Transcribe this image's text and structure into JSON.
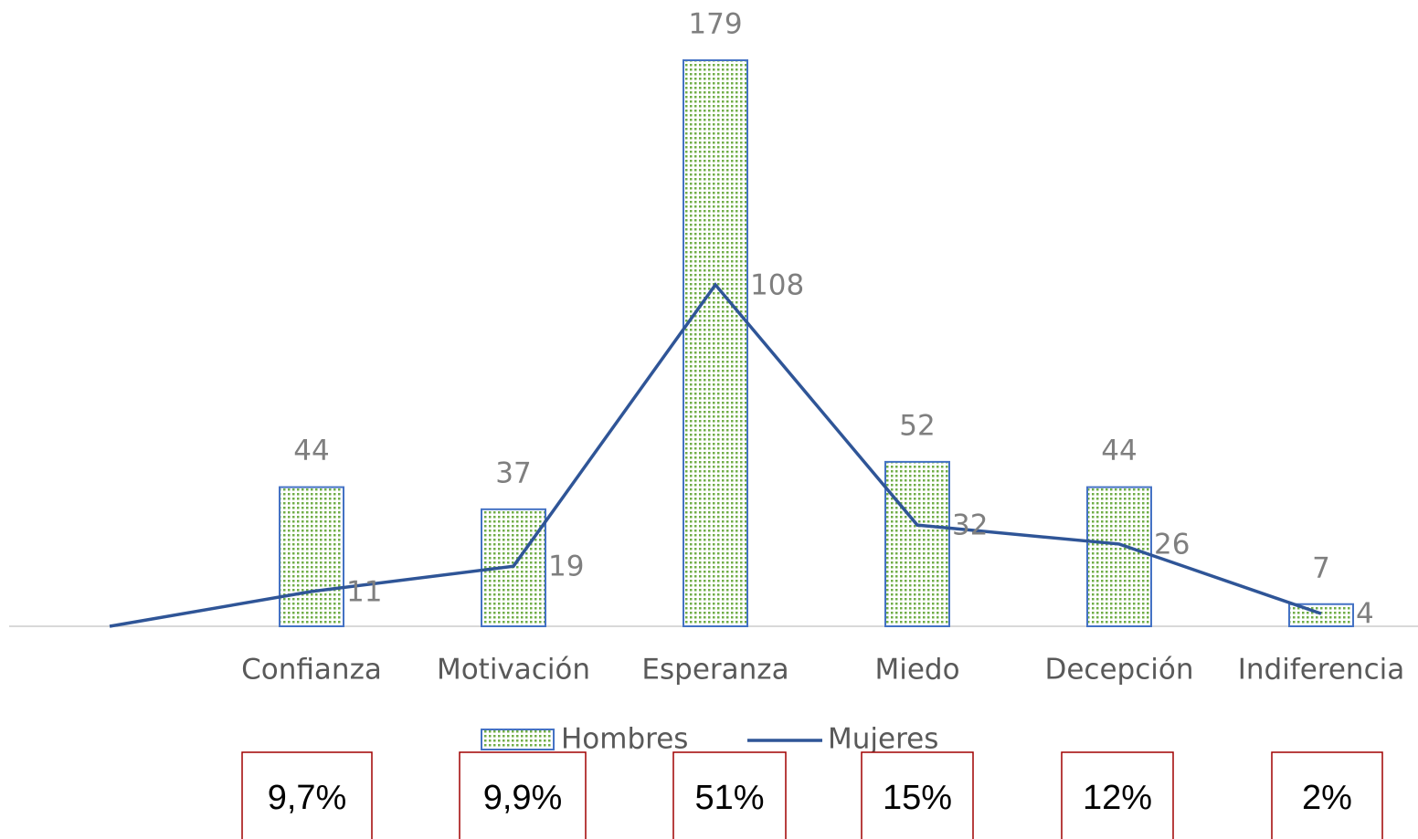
{
  "chart_data": {
    "type": "bar_line",
    "categories": [
      null,
      "Confianza",
      "Motivación",
      "Esperanza",
      "Miedo",
      "Decepción",
      "Indiferencia"
    ],
    "series": [
      {
        "name": "Hombres",
        "type": "bar",
        "color": "#4472c4",
        "fill": "#70ad47",
        "values": [
          null,
          44,
          37,
          179,
          52,
          44,
          7
        ]
      },
      {
        "name": "Mujeres",
        "type": "line",
        "color": "#2f5597",
        "values": [
          0,
          11,
          19,
          108,
          32,
          26,
          4
        ],
        "value_labels": [
          null,
          "11",
          "19",
          "108",
          "32",
          "26",
          "4"
        ]
      }
    ],
    "ylim": [
      0,
      179
    ],
    "legend": "bottom",
    "annotations": [
      "9,7%",
      "9,9%",
      "51%",
      "15%",
      "12%",
      "2%"
    ]
  }
}
